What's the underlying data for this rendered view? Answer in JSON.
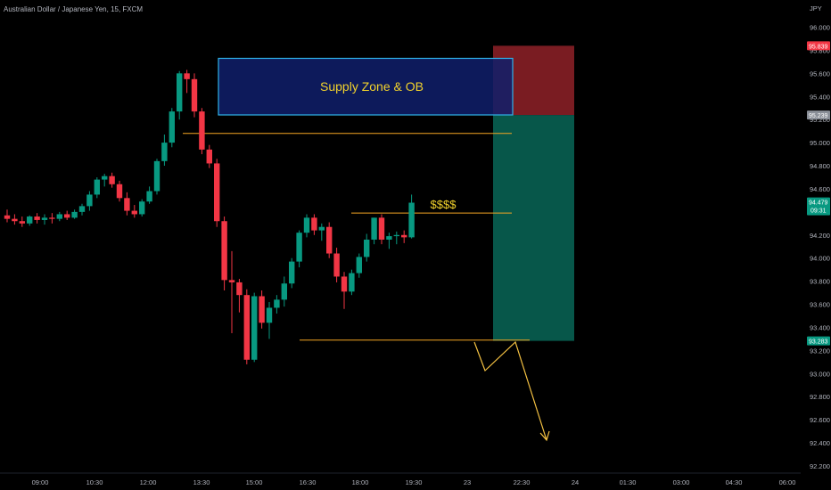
{
  "symbol_title": "Australian Dollar / Japanese Yen, 15, FXCM",
  "currency": "JPY",
  "colors": {
    "background": "#000000",
    "up": "#089981",
    "down": "#f23645",
    "axis_text": "#b2b5be",
    "level_line": "#f5a623",
    "zone_fill": "#0f1f6b",
    "zone_border": "#2fb3e8",
    "zone_text": "#f2d22c",
    "stop_fill": "#7a1c22",
    "target_fill": "#07574a",
    "arrow": "#f5c242",
    "badge_stop": "#f23645",
    "badge_entry": "#8a8f98",
    "badge_price": "#089981",
    "badge_target": "#089981"
  },
  "chart_data": {
    "type": "candlestick",
    "ylim": [
      92.2,
      96.0
    ],
    "y_ticks": [
      "96.000",
      "95.800",
      "95.600",
      "95.400",
      "95.200",
      "95.000",
      "94.800",
      "94.600",
      "94.400",
      "94.200",
      "94.000",
      "93.800",
      "93.600",
      "93.400",
      "93.200",
      "93.000",
      "92.800",
      "92.600",
      "92.400",
      "92.200"
    ],
    "x_ticks": [
      "09:00",
      "10:30",
      "12:00",
      "13:30",
      "15:00",
      "16:30",
      "18:00",
      "19:30",
      "23",
      "22:30",
      "24",
      "01:30",
      "03:00",
      "04:30",
      "06:00"
    ],
    "candles": [
      {
        "o": 94.37,
        "h": 94.42,
        "l": 94.31,
        "c": 94.34
      },
      {
        "o": 94.34,
        "h": 94.38,
        "l": 94.29,
        "c": 94.32
      },
      {
        "o": 94.32,
        "h": 94.36,
        "l": 94.27,
        "c": 94.3
      },
      {
        "o": 94.3,
        "h": 94.37,
        "l": 94.28,
        "c": 94.36
      },
      {
        "o": 94.36,
        "h": 94.39,
        "l": 94.3,
        "c": 94.33
      },
      {
        "o": 94.33,
        "h": 94.38,
        "l": 94.29,
        "c": 94.35
      },
      {
        "o": 94.35,
        "h": 94.39,
        "l": 94.3,
        "c": 94.34
      },
      {
        "o": 94.34,
        "h": 94.4,
        "l": 94.32,
        "c": 94.38
      },
      {
        "o": 94.38,
        "h": 94.41,
        "l": 94.33,
        "c": 94.35
      },
      {
        "o": 94.35,
        "h": 94.42,
        "l": 94.34,
        "c": 94.4
      },
      {
        "o": 94.4,
        "h": 94.47,
        "l": 94.37,
        "c": 94.45
      },
      {
        "o": 94.45,
        "h": 94.58,
        "l": 94.41,
        "c": 94.55
      },
      {
        "o": 94.55,
        "h": 94.7,
        "l": 94.52,
        "c": 94.68
      },
      {
        "o": 94.68,
        "h": 94.73,
        "l": 94.62,
        "c": 94.71
      },
      {
        "o": 94.71,
        "h": 94.74,
        "l": 94.61,
        "c": 94.64
      },
      {
        "o": 94.64,
        "h": 94.67,
        "l": 94.49,
        "c": 94.52
      },
      {
        "o": 94.52,
        "h": 94.57,
        "l": 94.37,
        "c": 94.41
      },
      {
        "o": 94.41,
        "h": 94.46,
        "l": 94.35,
        "c": 94.38
      },
      {
        "o": 94.38,
        "h": 94.51,
        "l": 94.36,
        "c": 94.49
      },
      {
        "o": 94.49,
        "h": 94.62,
        "l": 94.47,
        "c": 94.58
      },
      {
        "o": 94.58,
        "h": 94.86,
        "l": 94.55,
        "c": 94.84
      },
      {
        "o": 94.84,
        "h": 95.07,
        "l": 94.8,
        "c": 95.0
      },
      {
        "o": 95.0,
        "h": 95.3,
        "l": 94.96,
        "c": 95.27
      },
      {
        "o": 95.27,
        "h": 95.62,
        "l": 95.2,
        "c": 95.6
      },
      {
        "o": 95.6,
        "h": 95.63,
        "l": 95.43,
        "c": 95.55
      },
      {
        "o": 95.55,
        "h": 95.6,
        "l": 95.22,
        "c": 95.27
      },
      {
        "o": 95.27,
        "h": 95.3,
        "l": 94.9,
        "c": 94.94
      },
      {
        "o": 94.94,
        "h": 94.98,
        "l": 94.78,
        "c": 94.82
      },
      {
        "o": 94.82,
        "h": 94.86,
        "l": 94.27,
        "c": 94.32
      },
      {
        "o": 94.32,
        "h": 94.36,
        "l": 93.72,
        "c": 93.81
      },
      {
        "o": 93.81,
        "h": 94.06,
        "l": 93.35,
        "c": 93.79
      },
      {
        "o": 93.79,
        "h": 93.82,
        "l": 93.53,
        "c": 93.68
      },
      {
        "o": 93.68,
        "h": 93.73,
        "l": 93.08,
        "c": 93.12
      },
      {
        "o": 93.12,
        "h": 93.7,
        "l": 93.1,
        "c": 93.67
      },
      {
        "o": 93.67,
        "h": 93.72,
        "l": 93.39,
        "c": 93.44
      },
      {
        "o": 93.44,
        "h": 93.62,
        "l": 93.3,
        "c": 93.57
      },
      {
        "o": 93.57,
        "h": 93.68,
        "l": 93.52,
        "c": 93.64
      },
      {
        "o": 93.64,
        "h": 93.84,
        "l": 93.58,
        "c": 93.78
      },
      {
        "o": 93.78,
        "h": 94.0,
        "l": 93.74,
        "c": 93.97
      },
      {
        "o": 93.97,
        "h": 94.24,
        "l": 93.92,
        "c": 94.22
      },
      {
        "o": 94.22,
        "h": 94.38,
        "l": 94.18,
        "c": 94.35
      },
      {
        "o": 94.35,
        "h": 94.38,
        "l": 94.2,
        "c": 94.24
      },
      {
        "o": 94.24,
        "h": 94.3,
        "l": 94.15,
        "c": 94.27
      },
      {
        "o": 94.27,
        "h": 94.31,
        "l": 94.0,
        "c": 94.04
      },
      {
        "o": 94.04,
        "h": 94.09,
        "l": 93.79,
        "c": 93.84
      },
      {
        "o": 93.84,
        "h": 93.88,
        "l": 93.56,
        "c": 93.71
      },
      {
        "o": 93.71,
        "h": 93.9,
        "l": 93.68,
        "c": 93.87
      },
      {
        "o": 93.87,
        "h": 94.04,
        "l": 93.83,
        "c": 94.01
      },
      {
        "o": 94.01,
        "h": 94.21,
        "l": 93.97,
        "c": 94.16
      },
      {
        "o": 94.16,
        "h": 94.35,
        "l": 94.12,
        "c": 94.35
      },
      {
        "o": 94.35,
        "h": 94.38,
        "l": 94.12,
        "c": 94.16
      },
      {
        "o": 94.16,
        "h": 94.22,
        "l": 94.08,
        "c": 94.19
      },
      {
        "o": 94.19,
        "h": 94.23,
        "l": 94.12,
        "c": 94.2
      },
      {
        "o": 94.2,
        "h": 94.24,
        "l": 94.13,
        "c": 94.18
      },
      {
        "o": 94.18,
        "h": 94.55,
        "l": 94.17,
        "c": 94.48
      }
    ],
    "levels": [
      {
        "name": "ob-low-line",
        "price": 95.08
      },
      {
        "name": "liquidity-line",
        "price": 94.39
      },
      {
        "name": "swing-low-line",
        "price": 93.29
      }
    ],
    "supply_zone": {
      "label": "Supply Zone & OB",
      "top": 95.73,
      "bottom": 95.24
    },
    "position": {
      "stop": 95.839,
      "entry": 95.239,
      "target": 93.283
    },
    "annotations": [
      {
        "text": "$$$$",
        "price": 94.47
      }
    ],
    "price_badges": [
      {
        "name": "stop",
        "value": "95.839"
      },
      {
        "name": "entry",
        "value": "95.239"
      },
      {
        "name": "current",
        "value": "94.479",
        "sub": "09:31"
      },
      {
        "name": "target",
        "value": "93.283"
      }
    ],
    "grid": false
  }
}
